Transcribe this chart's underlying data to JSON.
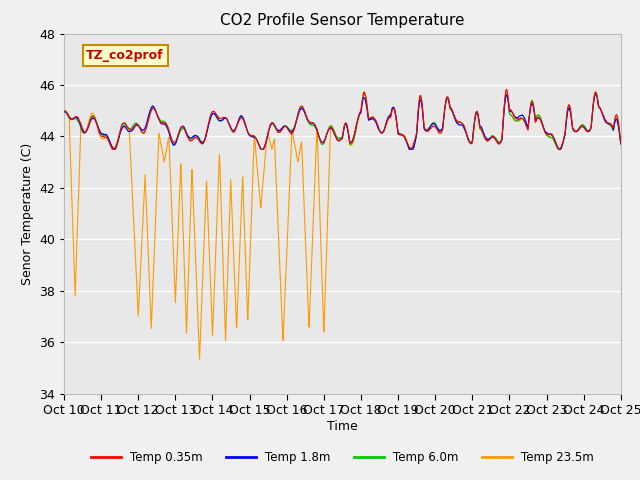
{
  "title": "CO2 Profile Sensor Temperature",
  "xlabel": "Time",
  "ylabel": "Senor Temperature (C)",
  "ylim": [
    34,
    48
  ],
  "xlim": [
    0,
    15
  ],
  "background_color": "#f0f0f0",
  "plot_bg_color": "#e8e8e8",
  "grid_color": "#ffffff",
  "annotation_text": "TZ_co2prof",
  "annotation_bg": "#ffffcc",
  "annotation_border": "#cc8800",
  "xtick_positions": [
    0,
    1,
    2,
    3,
    4,
    5,
    6,
    7,
    8,
    9,
    10,
    11,
    12,
    13,
    14,
    15
  ],
  "xtick_labels": [
    "Oct 10",
    "Oct 11",
    "Oct 12",
    "Oct 13",
    "Oct 14",
    "Oct 15",
    "Oct 16",
    "Oct 17",
    "Oct 18",
    "Oct 19",
    "Oct 20",
    "Oct 21",
    "Oct 22",
    "Oct 23",
    "Oct 24",
    "Oct 25"
  ],
  "legend_entries": [
    "Temp 0.35m",
    "Temp 1.8m",
    "Temp 6.0m",
    "Temp 23.5m"
  ],
  "legend_colors": [
    "#ff0000",
    "#0000ff",
    "#00cc00",
    "#ff9900"
  ],
  "series_colors": [
    "#ff0000",
    "#0000ff",
    "#00cc00",
    "#ff9900"
  ],
  "ytick_values": [
    34,
    36,
    38,
    40,
    42,
    44,
    46,
    48
  ]
}
